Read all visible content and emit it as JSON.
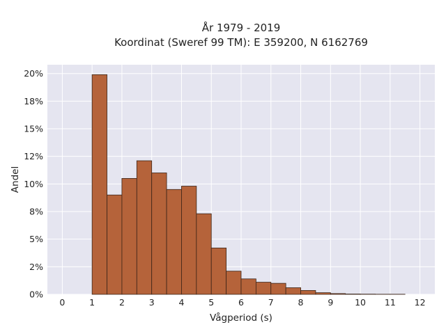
{
  "chart_data": {
    "type": "bar",
    "title_line1": "År 1979 - 2019",
    "title_line2": "Koordinat (Sweref 99 TM): E 359200, N 6162769",
    "xlabel": "Vågperiod (s)",
    "ylabel": "Andel",
    "xlim": [
      -0.5,
      12.5
    ],
    "ylim": [
      0,
      0.208
    ],
    "x_ticks": [
      0,
      1,
      2,
      3,
      4,
      5,
      6,
      7,
      8,
      9,
      10,
      11,
      12
    ],
    "x_tick_labels": [
      "0",
      "1",
      "2",
      "3",
      "4",
      "5",
      "6",
      "7",
      "8",
      "9",
      "10",
      "11",
      "12"
    ],
    "y_ticks": [
      0,
      0.025,
      0.05,
      0.075,
      0.1,
      0.125,
      0.15,
      0.175,
      0.2
    ],
    "y_tick_labels": [
      "0%",
      "2%",
      "5%",
      "8%",
      "10%",
      "12%",
      "15%",
      "18%",
      "20%"
    ],
    "bin_width": 0.5,
    "bin_starts": [
      1.0,
      1.5,
      2.0,
      2.5,
      3.0,
      3.5,
      4.0,
      4.5,
      5.0,
      5.5,
      6.0,
      6.5,
      7.0,
      7.5,
      8.0,
      8.5,
      9.0,
      9.5,
      10.0,
      10.5,
      11.0
    ],
    "values": [
      0.199,
      0.09,
      0.105,
      0.121,
      0.11,
      0.095,
      0.098,
      0.073,
      0.042,
      0.021,
      0.014,
      0.011,
      0.01,
      0.006,
      0.0035,
      0.0015,
      0.0007,
      0.0003,
      0.0002,
      0.0001,
      0.0001
    ],
    "bar_color": "#b5633a",
    "bar_edge_color": "#3a2418",
    "plot_background": "#e5e5f0",
    "grid": true
  }
}
